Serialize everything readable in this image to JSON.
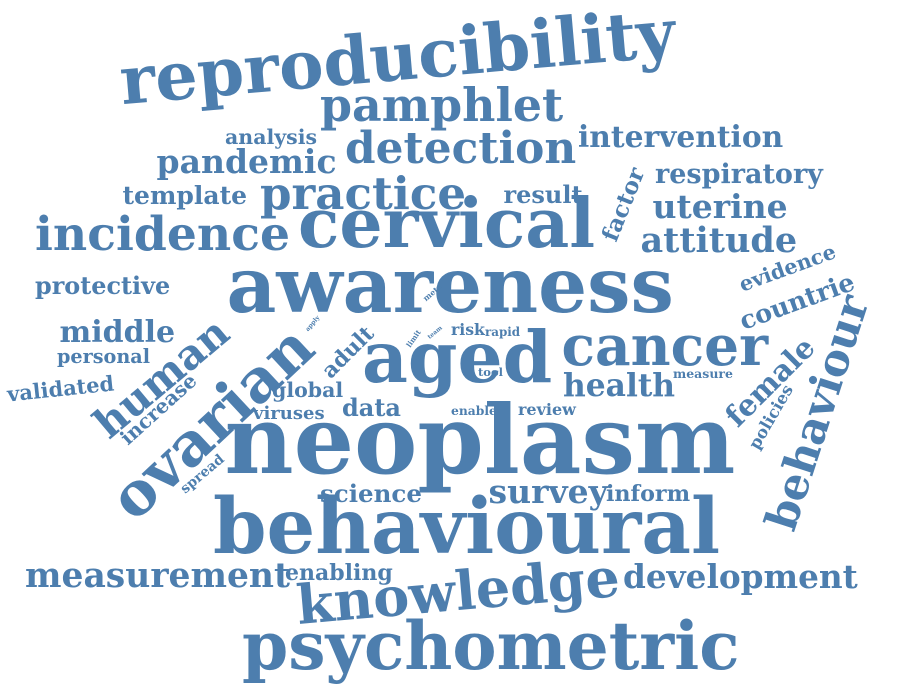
{
  "color": "#4d7eae",
  "words": [
    "reproducibility",
    "pamphlet",
    "analysis",
    "intervention",
    "detection",
    "pandemic",
    "respiratory",
    "template",
    "practice",
    "result",
    "uterine",
    "incidence",
    "cervical",
    "factor",
    "attitude",
    "protective",
    "awareness",
    "evidence",
    "countrie",
    "middle",
    "apply",
    "meta",
    "limit",
    "team",
    "risk",
    "rapid",
    "human",
    "ovarian",
    "adult",
    "aged",
    "cancer",
    "behaviour",
    "personal",
    "female",
    "validated",
    "increase",
    "global",
    "tool",
    "measure",
    "health",
    "viruses",
    "data",
    "enable",
    "review",
    "policies",
    "neoplasm",
    "spread",
    "science",
    "survey",
    "inform",
    "behavioural",
    "measurement",
    "enabling",
    "knowledge",
    "development",
    "psychometric"
  ]
}
